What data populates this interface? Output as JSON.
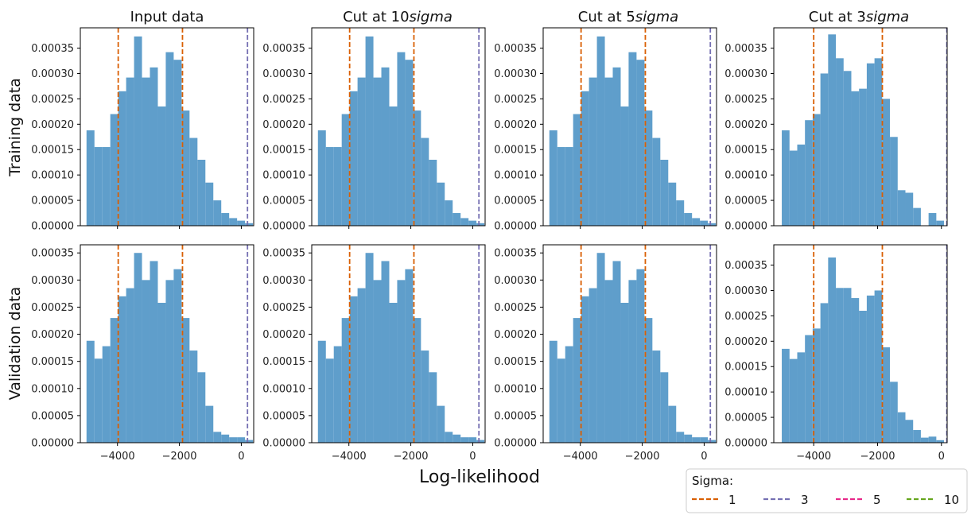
{
  "figure": {
    "xlabel": "Log-likelihood",
    "row_labels": [
      "Training data",
      "Validation data"
    ],
    "column_titles": [
      {
        "plain": "Input data",
        "italic": ""
      },
      {
        "plain": "Cut at 10",
        "italic": "sigma"
      },
      {
        "plain": "Cut at 5",
        "italic": "sigma"
      },
      {
        "plain": "Cut at 3",
        "italic": "sigma"
      }
    ]
  },
  "legend": {
    "title": "Sigma:",
    "entries": [
      {
        "label": "1",
        "color": "#d95f02"
      },
      {
        "label": "3",
        "color": "#7570b3"
      },
      {
        "label": "5",
        "color": "#e7298a"
      },
      {
        "label": "10",
        "color": "#66a61e"
      }
    ]
  },
  "colors": {
    "bar": "#5f9ecb"
  },
  "chart_data": [
    {
      "type": "bar",
      "title": "Input data",
      "row": "Training data",
      "bin_edges": [
        -5000,
        -4744,
        -4488,
        -4232,
        -3976,
        -3720,
        -3464,
        -3208,
        -2952,
        -2696,
        -2440,
        -2184,
        -1928,
        -1672,
        -1416,
        -1160,
        -904,
        -648,
        -392,
        -136,
        120,
        376
      ],
      "values": [
        0.000188,
        0.000155,
        0.000155,
        0.00022,
        0.000265,
        0.000292,
        0.000373,
        0.000292,
        0.000312,
        0.000235,
        0.000342,
        0.000327,
        0.000227,
        0.000173,
        0.00013,
        8.5e-05,
        5e-05,
        2.5e-05,
        1.5e-05,
        1e-05,
        5e-06
      ],
      "xticks": [
        -4000,
        -2000,
        0
      ],
      "xlim": [
        -5200,
        400
      ],
      "yticks": [
        0,
        5e-05,
        0.0001,
        0.00015,
        0.0002,
        0.00025,
        0.0003,
        0.00035
      ],
      "ylim": [
        0,
        0.00039
      ],
      "vlines": [
        {
          "x": -3976,
          "sigma": "1"
        },
        {
          "x": -1900,
          "sigma": "1"
        },
        {
          "x": 200,
          "sigma": "3"
        }
      ]
    },
    {
      "type": "bar",
      "title": "Cut at 10sigma",
      "row": "Training data",
      "bin_edges": [
        -5000,
        -4744,
        -4488,
        -4232,
        -3976,
        -3720,
        -3464,
        -3208,
        -2952,
        -2696,
        -2440,
        -2184,
        -1928,
        -1672,
        -1416,
        -1160,
        -904,
        -648,
        -392,
        -136,
        120,
        376
      ],
      "values": [
        0.000188,
        0.000155,
        0.000155,
        0.00022,
        0.000265,
        0.000292,
        0.000373,
        0.000292,
        0.000312,
        0.000235,
        0.000342,
        0.000327,
        0.000227,
        0.000173,
        0.00013,
        8.5e-05,
        5e-05,
        2.5e-05,
        1.5e-05,
        1e-05,
        5e-06
      ],
      "xticks": [
        -4000,
        -2000,
        0
      ],
      "xlim": [
        -5200,
        400
      ],
      "yticks": [
        0,
        5e-05,
        0.0001,
        0.00015,
        0.0002,
        0.00025,
        0.0003,
        0.00035
      ],
      "ylim": [
        0,
        0.00039
      ],
      "vlines": [
        {
          "x": -3976,
          "sigma": "1"
        },
        {
          "x": -1900,
          "sigma": "1"
        },
        {
          "x": 200,
          "sigma": "3"
        }
      ]
    },
    {
      "type": "bar",
      "title": "Cut at 5sigma",
      "row": "Training data",
      "bin_edges": [
        -5000,
        -4744,
        -4488,
        -4232,
        -3976,
        -3720,
        -3464,
        -3208,
        -2952,
        -2696,
        -2440,
        -2184,
        -1928,
        -1672,
        -1416,
        -1160,
        -904,
        -648,
        -392,
        -136,
        120,
        376
      ],
      "values": [
        0.000188,
        0.000155,
        0.000155,
        0.00022,
        0.000265,
        0.000292,
        0.000373,
        0.000292,
        0.000312,
        0.000235,
        0.000342,
        0.000327,
        0.000227,
        0.000173,
        0.00013,
        8.5e-05,
        5e-05,
        2.5e-05,
        1.5e-05,
        1e-05,
        5e-06
      ],
      "xticks": [
        -4000,
        -2000,
        0
      ],
      "xlim": [
        -5200,
        400
      ],
      "yticks": [
        0,
        5e-05,
        0.0001,
        0.00015,
        0.0002,
        0.00025,
        0.0003,
        0.00035
      ],
      "ylim": [
        0,
        0.00039
      ],
      "vlines": [
        {
          "x": -3976,
          "sigma": "1"
        },
        {
          "x": -1900,
          "sigma": "1"
        },
        {
          "x": 200,
          "sigma": "3"
        }
      ]
    },
    {
      "type": "bar",
      "title": "Cut at 3sigma",
      "row": "Training data",
      "bin_edges": [
        -5000,
        -4758,
        -4516,
        -4274,
        -4032,
        -3790,
        -3548,
        -3306,
        -3064,
        -2822,
        -2580,
        -2338,
        -2096,
        -1854,
        -1612,
        -1370,
        -1128,
        -886,
        -644,
        -402,
        -160,
        82
      ],
      "values": [
        0.000188,
        0.000148,
        0.00016,
        0.000208,
        0.00022,
        0.0003,
        0.000377,
        0.00033,
        0.000305,
        0.000265,
        0.00027,
        0.00032,
        0.00033,
        0.00025,
        0.000175,
        7e-05,
        6.5e-05,
        3.5e-05,
        0.0,
        2.5e-05,
        1e-05
      ],
      "xticks": [
        -4000,
        -2000,
        0
      ],
      "xlim": [
        -5250,
        180
      ],
      "yticks": [
        0,
        5e-05,
        0.0001,
        0.00015,
        0.0002,
        0.00025,
        0.0003,
        0.00035
      ],
      "ylim": [
        0,
        0.00039
      ],
      "vlines": [
        {
          "x": -4000,
          "sigma": "1"
        },
        {
          "x": -1850,
          "sigma": "1"
        },
        {
          "x": 170,
          "sigma": "3"
        }
      ]
    },
    {
      "type": "bar",
      "title": "Input data",
      "row": "Validation data",
      "bin_edges": [
        -5000,
        -4744,
        -4488,
        -4232,
        -3976,
        -3720,
        -3464,
        -3208,
        -2952,
        -2696,
        -2440,
        -2184,
        -1928,
        -1672,
        -1416,
        -1160,
        -904,
        -648,
        -392,
        -136,
        120,
        376
      ],
      "values": [
        0.000188,
        0.000155,
        0.000178,
        0.00023,
        0.00027,
        0.000285,
        0.00035,
        0.0003,
        0.000335,
        0.000258,
        0.0003,
        0.00032,
        0.00023,
        0.00017,
        0.00013,
        6.8e-05,
        2e-05,
        1.5e-05,
        1e-05,
        1e-05,
        5e-06
      ],
      "xticks": [
        -4000,
        -2000,
        0
      ],
      "xlim": [
        -5200,
        400
      ],
      "yticks": [
        0,
        5e-05,
        0.0001,
        0.00015,
        0.0002,
        0.00025,
        0.0003,
        0.00035
      ],
      "ylim": [
        0,
        0.000365
      ],
      "vlines": [
        {
          "x": -3976,
          "sigma": "1"
        },
        {
          "x": -1900,
          "sigma": "1"
        },
        {
          "x": 200,
          "sigma": "3"
        }
      ]
    },
    {
      "type": "bar",
      "title": "Cut at 10sigma",
      "row": "Validation data",
      "bin_edges": [
        -5000,
        -4744,
        -4488,
        -4232,
        -3976,
        -3720,
        -3464,
        -3208,
        -2952,
        -2696,
        -2440,
        -2184,
        -1928,
        -1672,
        -1416,
        -1160,
        -904,
        -648,
        -392,
        -136,
        120,
        376
      ],
      "values": [
        0.000188,
        0.000155,
        0.000178,
        0.00023,
        0.00027,
        0.000285,
        0.00035,
        0.0003,
        0.000335,
        0.000258,
        0.0003,
        0.00032,
        0.00023,
        0.00017,
        0.00013,
        6.8e-05,
        2e-05,
        1.5e-05,
        1e-05,
        1e-05,
        5e-06
      ],
      "xticks": [
        -4000,
        -2000,
        0
      ],
      "xlim": [
        -5200,
        400
      ],
      "yticks": [
        0,
        5e-05,
        0.0001,
        0.00015,
        0.0002,
        0.00025,
        0.0003,
        0.00035
      ],
      "ylim": [
        0,
        0.000365
      ],
      "vlines": [
        {
          "x": -3976,
          "sigma": "1"
        },
        {
          "x": -1900,
          "sigma": "1"
        },
        {
          "x": 200,
          "sigma": "3"
        }
      ]
    },
    {
      "type": "bar",
      "title": "Cut at 5sigma",
      "row": "Validation data",
      "bin_edges": [
        -5000,
        -4744,
        -4488,
        -4232,
        -3976,
        -3720,
        -3464,
        -3208,
        -2952,
        -2696,
        -2440,
        -2184,
        -1928,
        -1672,
        -1416,
        -1160,
        -904,
        -648,
        -392,
        -136,
        120,
        376
      ],
      "values": [
        0.000188,
        0.000155,
        0.000178,
        0.00023,
        0.00027,
        0.000285,
        0.00035,
        0.0003,
        0.000335,
        0.000258,
        0.0003,
        0.00032,
        0.00023,
        0.00017,
        0.00013,
        6.8e-05,
        2e-05,
        1.5e-05,
        1e-05,
        1e-05,
        5e-06
      ],
      "xticks": [
        -4000,
        -2000,
        0
      ],
      "xlim": [
        -5200,
        400
      ],
      "yticks": [
        0,
        5e-05,
        0.0001,
        0.00015,
        0.0002,
        0.00025,
        0.0003,
        0.00035
      ],
      "ylim": [
        0,
        0.000365
      ],
      "vlines": [
        {
          "x": -3976,
          "sigma": "1"
        },
        {
          "x": -1900,
          "sigma": "1"
        },
        {
          "x": 200,
          "sigma": "3"
        }
      ]
    },
    {
      "type": "bar",
      "title": "Cut at 3sigma",
      "row": "Validation data",
      "bin_edges": [
        -5000,
        -4758,
        -4516,
        -4274,
        -4032,
        -3790,
        -3548,
        -3306,
        -3064,
        -2822,
        -2580,
        -2338,
        -2096,
        -1854,
        -1612,
        -1370,
        -1128,
        -886,
        -644,
        -402,
        -160,
        82
      ],
      "values": [
        0.000185,
        0.000165,
        0.000178,
        0.000212,
        0.000225,
        0.000275,
        0.000365,
        0.000305,
        0.000305,
        0.000285,
        0.00026,
        0.00029,
        0.0003,
        0.000188,
        0.00012,
        6e-05,
        4.5e-05,
        2.5e-05,
        1e-05,
        1.2e-05,
        5e-06
      ],
      "xticks": [
        -4000,
        -2000,
        0
      ],
      "xlim": [
        -5250,
        180
      ],
      "yticks": [
        0,
        5e-05,
        0.0001,
        0.00015,
        0.0002,
        0.00025,
        0.0003,
        0.00035
      ],
      "ylim": [
        0,
        0.00039
      ],
      "vlines": [
        {
          "x": -4000,
          "sigma": "1"
        },
        {
          "x": -1850,
          "sigma": "1"
        },
        {
          "x": 170,
          "sigma": "3"
        }
      ]
    }
  ]
}
